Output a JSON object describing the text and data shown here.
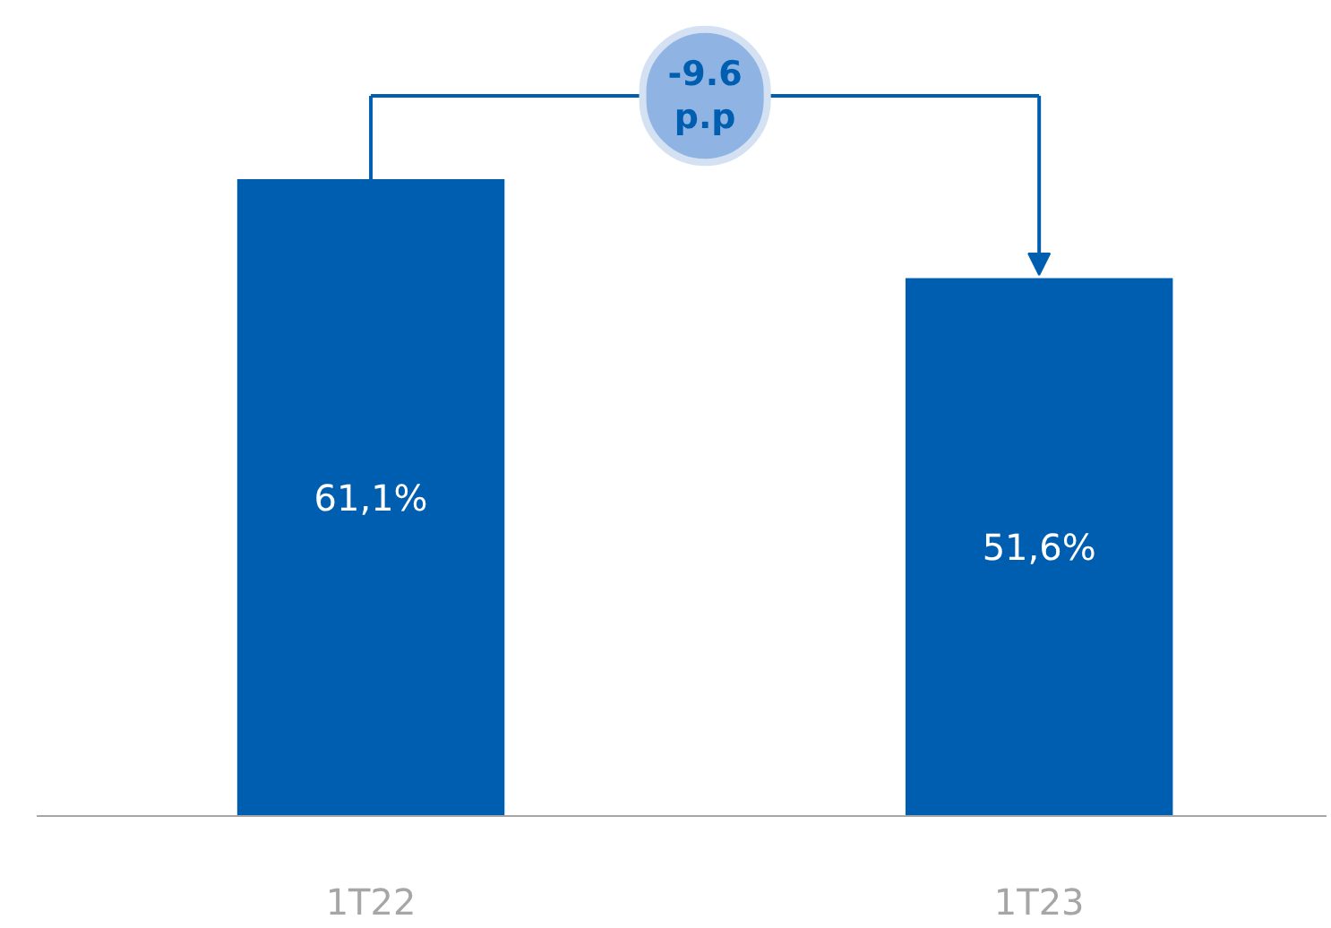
{
  "chart_data": {
    "type": "bar",
    "categories": [
      "1T22",
      "1T23"
    ],
    "values": [
      61.1,
      51.6
    ],
    "value_labels": [
      "61,1%",
      "51,6%"
    ],
    "color": "#005eb0",
    "annotations": [
      "-9.6 p.p"
    ]
  }
}
